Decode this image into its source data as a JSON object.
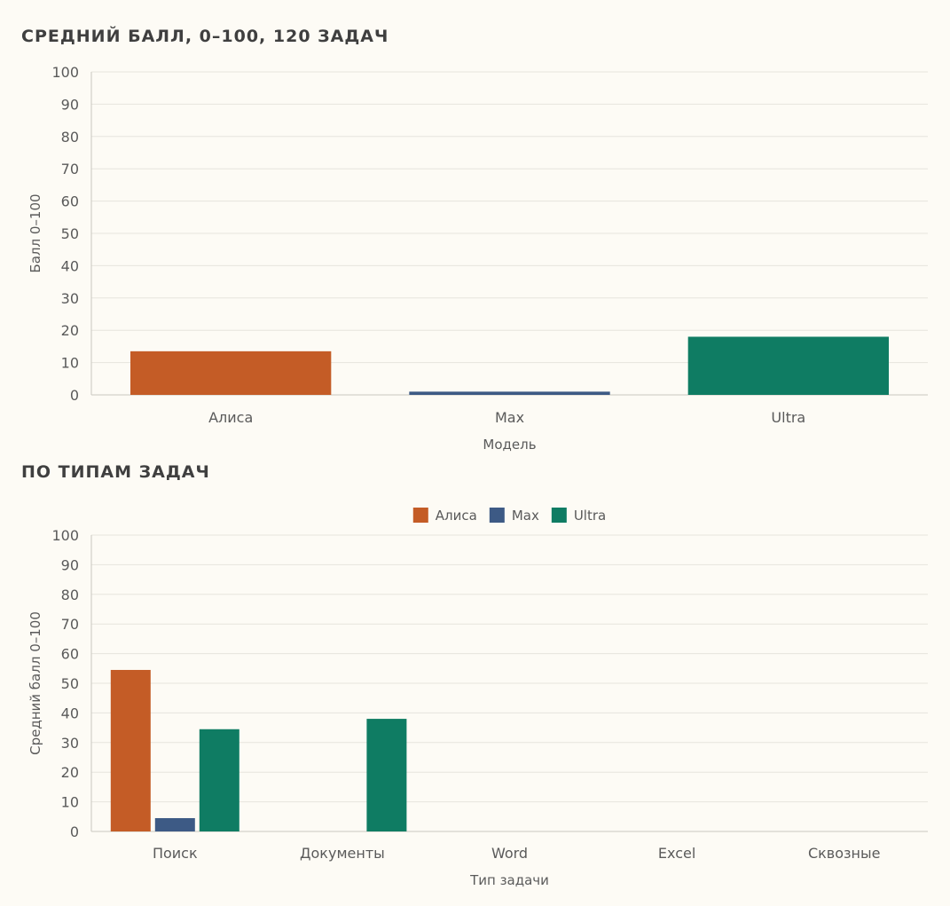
{
  "section1": {
    "title": "СРЕДНИЙ БАЛЛ, 0–100, 120 ЗАДАЧ"
  },
  "section2": {
    "title": "ПО ТИПАМ ЗАДАЧ"
  },
  "colors": {
    "Алиса": "#c45c26",
    "Max": "#3d5a85",
    "Ultra": "#0f7c63"
  },
  "chart_data": [
    {
      "type": "bar",
      "categories": [
        "Алиса",
        "Max",
        "Ultra"
      ],
      "values": [
        13.5,
        1,
        18
      ],
      "xlabel": "Модель",
      "ylabel": "Балл 0–100",
      "ylim": [
        0,
        100
      ],
      "yticks": [
        0,
        10,
        20,
        30,
        40,
        50,
        60,
        70,
        80,
        90,
        100
      ],
      "grid": true,
      "legend": "none"
    },
    {
      "type": "bar",
      "categories": [
        "Поиск",
        "Документы",
        "Word",
        "Excel",
        "Сквозные"
      ],
      "series": [
        {
          "name": "Алиса",
          "values": [
            54.5,
            0,
            0,
            0,
            0
          ]
        },
        {
          "name": "Max",
          "values": [
            4.5,
            0,
            0,
            0,
            0
          ]
        },
        {
          "name": "Ultra",
          "values": [
            34.5,
            38,
            0,
            0,
            0
          ]
        }
      ],
      "xlabel": "Тип задачи",
      "ylabel": "Средний балл 0–100",
      "ylim": [
        0,
        100
      ],
      "yticks": [
        0,
        10,
        20,
        30,
        40,
        50,
        60,
        70,
        80,
        90,
        100
      ],
      "grid": true,
      "legend": "top-center"
    }
  ]
}
